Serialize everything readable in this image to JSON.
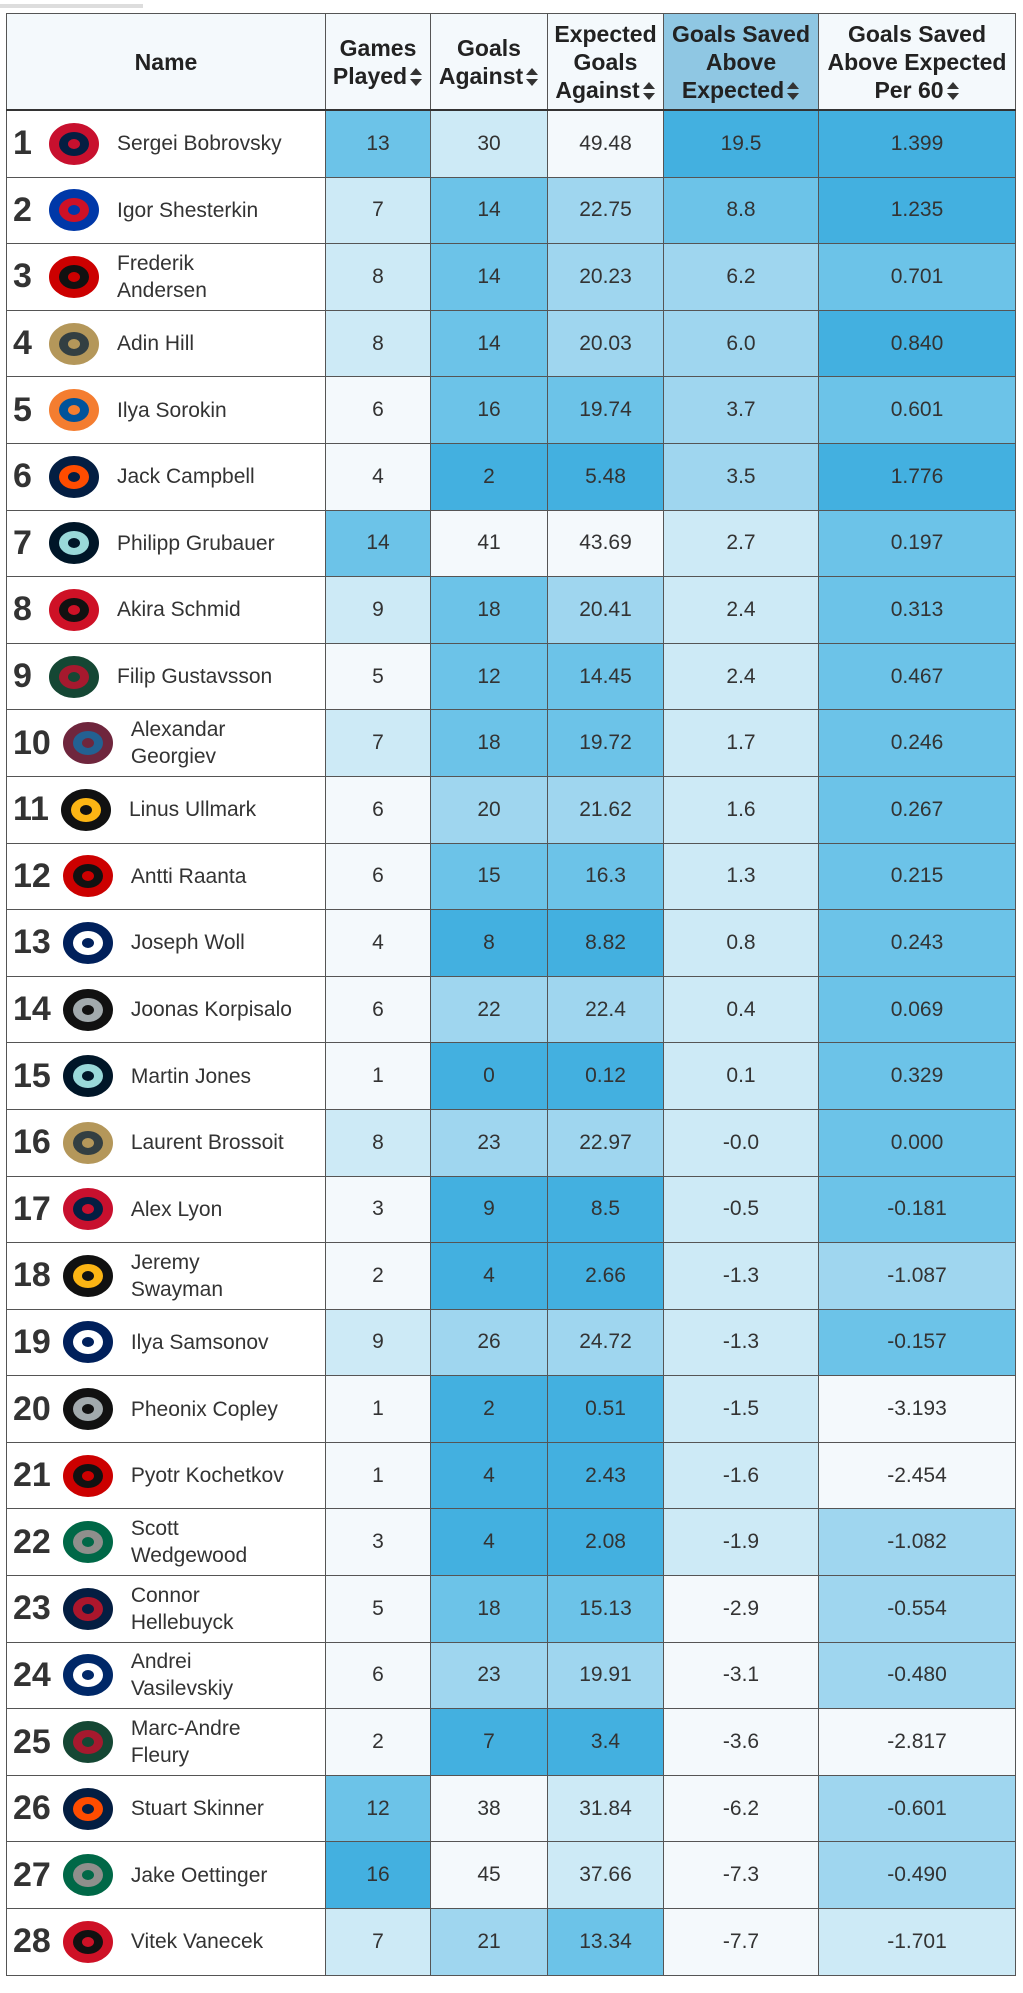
{
  "header": {
    "columns": [
      "Name",
      "Games Played",
      "Goals Against",
      "Expected Goals Against",
      "Goals Saved Above Expected",
      "Goals Saved Above Expected Per 60"
    ]
  },
  "table": {
    "rows": [
      [
        "1",
        "Sergei Bobrovsky",
        "13",
        "30",
        "49.48",
        "19.5",
        "1.399"
      ],
      [
        "2",
        "Igor Shesterkin",
        "7",
        "14",
        "22.75",
        "8.8",
        "1.235"
      ],
      [
        "3",
        "Frederik Andersen",
        "8",
        "14",
        "20.23",
        "6.2",
        "0.701"
      ],
      [
        "4",
        "Adin Hill",
        "8",
        "14",
        "20.03",
        "6.0",
        "0.840"
      ],
      [
        "5",
        "Ilya Sorokin",
        "6",
        "16",
        "19.74",
        "3.7",
        "0.601"
      ],
      [
        "6",
        "Jack Campbell",
        "4",
        "2",
        "5.48",
        "3.5",
        "1.776"
      ],
      [
        "7",
        "Philipp Grubauer",
        "14",
        "41",
        "43.69",
        "2.7",
        "0.197"
      ],
      [
        "8",
        "Akira Schmid",
        "9",
        "18",
        "20.41",
        "2.4",
        "0.313"
      ],
      [
        "9",
        "Filip Gustavsson",
        "5",
        "12",
        "14.45",
        "2.4",
        "0.467"
      ],
      [
        "10",
        "Alexandar Georgiev",
        "7",
        "18",
        "19.72",
        "1.7",
        "0.246"
      ],
      [
        "11",
        "Linus Ullmark",
        "6",
        "20",
        "21.62",
        "1.6",
        "0.267"
      ],
      [
        "12",
        "Antti Raanta",
        "6",
        "15",
        "16.3",
        "1.3",
        "0.215"
      ],
      [
        "13",
        "Joseph Woll",
        "4",
        "8",
        "8.82",
        "0.8",
        "0.243"
      ],
      [
        "14",
        "Joonas Korpisalo",
        "6",
        "22",
        "22.4",
        "0.4",
        "0.069"
      ],
      [
        "15",
        "Martin Jones",
        "1",
        "0",
        "0.12",
        "0.1",
        "0.329"
      ],
      [
        "16",
        "Laurent Brossoit",
        "8",
        "23",
        "22.97",
        "-0.0",
        "0.000"
      ],
      [
        "17",
        "Alex Lyon",
        "3",
        "9",
        "8.5",
        "-0.5",
        "-0.181"
      ],
      [
        "18",
        "Jeremy Swayman",
        "2",
        "4",
        "2.66",
        "-1.3",
        "-1.087"
      ],
      [
        "19",
        "Ilya Samsonov",
        "9",
        "26",
        "24.72",
        "-1.3",
        "-0.157"
      ],
      [
        "20",
        "Pheonix Copley",
        "1",
        "2",
        "0.51",
        "-1.5",
        "-3.193"
      ],
      [
        "21",
        "Pyotr Kochetkov",
        "1",
        "4",
        "2.43",
        "-1.6",
        "-2.454"
      ],
      [
        "22",
        "Scott Wedgewood",
        "3",
        "4",
        "2.08",
        "-1.9",
        "-1.082"
      ],
      [
        "23",
        "Connor Hellebuyck",
        "5",
        "18",
        "15.13",
        "-2.9",
        "-0.554"
      ],
      [
        "24",
        "Andrei Vasilevskiy",
        "6",
        "23",
        "19.91",
        "-3.1",
        "-0.480"
      ],
      [
        "25",
        "Marc-Andre Fleury",
        "2",
        "7",
        "3.4",
        "-3.6",
        "-2.817"
      ],
      [
        "26",
        "Stuart Skinner",
        "12",
        "38",
        "31.84",
        "-6.2",
        "-0.601"
      ],
      [
        "27",
        "Jake Oettinger",
        "16",
        "45",
        "37.66",
        "-7.3",
        "-0.490"
      ],
      [
        "28",
        "Vitek Vanecek",
        "7",
        "21",
        "13.34",
        "-7.7",
        "-1.701"
      ]
    ],
    "logo_colors": [
      [
        "#c8102e",
        "#041e42"
      ],
      [
        "#0038a8",
        "#ce1126"
      ],
      [
        "#cc0000",
        "#111111"
      ],
      [
        "#b4975a",
        "#333f42"
      ],
      [
        "#f47d30",
        "#00539b"
      ],
      [
        "#041e42",
        "#ff4c00"
      ],
      [
        "#001628",
        "#99d9d9"
      ],
      [
        "#ce1126",
        "#111111"
      ],
      [
        "#154734",
        "#a6192e"
      ],
      [
        "#6f263d",
        "#236192"
      ],
      [
        "#111111",
        "#fcb514"
      ],
      [
        "#cc0000",
        "#111111"
      ],
      [
        "#00205b",
        "#ffffff"
      ],
      [
        "#111111",
        "#a2aaad"
      ],
      [
        "#001628",
        "#99d9d9"
      ],
      [
        "#b4975a",
        "#333f42"
      ],
      [
        "#c8102e",
        "#041e42"
      ],
      [
        "#111111",
        "#fcb514"
      ],
      [
        "#00205b",
        "#ffffff"
      ],
      [
        "#111111",
        "#a2aaad"
      ],
      [
        "#cc0000",
        "#111111"
      ],
      [
        "#006847",
        "#8f8f8c"
      ],
      [
        "#041e42",
        "#ac162c"
      ],
      [
        "#002868",
        "#ffffff"
      ],
      [
        "#154734",
        "#a6192e"
      ],
      [
        "#041e42",
        "#ff4c00"
      ],
      [
        "#006847",
        "#8f8f8c"
      ],
      [
        "#ce1126",
        "#111111"
      ]
    ]
  }
}
